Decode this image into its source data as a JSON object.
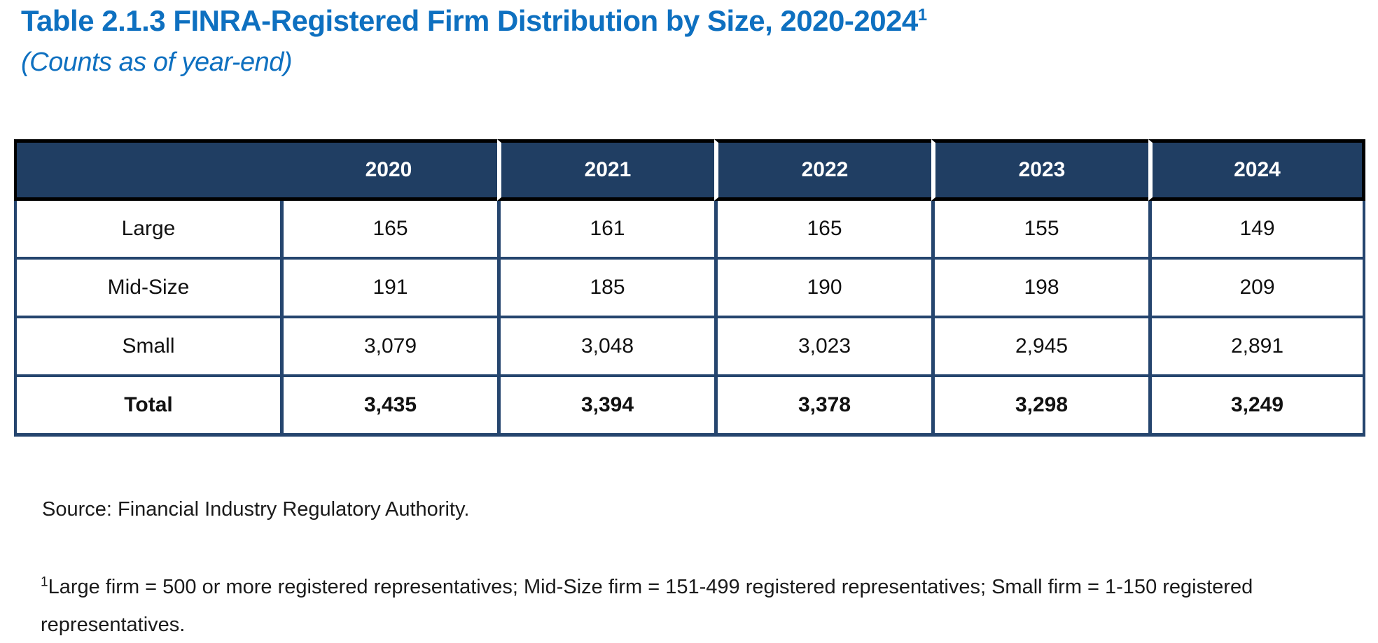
{
  "title": {
    "text": "Table 2.1.3 FINRA-Registered Firm Distribution by Size, 2020-2024",
    "superscript": "1"
  },
  "subtitle": "(Counts as of year-end)",
  "colors": {
    "accent_blue": "#0E70C0",
    "header_navy": "#203E63",
    "body_border_navy": "#25456E",
    "outer_border_black": "#000000"
  },
  "chart_data": {
    "type": "table",
    "title": "Table 2.1.3 FINRA-Registered Firm Distribution by Size, 2020-2024",
    "subtitle": "(Counts as of year-end)",
    "columns": [
      "2020",
      "2021",
      "2022",
      "2023",
      "2024"
    ],
    "rows": [
      {
        "label": "Large",
        "values": [
          "165",
          "161",
          "165",
          "155",
          "149"
        ]
      },
      {
        "label": "Mid-Size",
        "values": [
          "191",
          "185",
          "190",
          "198",
          "209"
        ]
      },
      {
        "label": "Small",
        "values": [
          "3,079",
          "3,048",
          "3,023",
          "2,945",
          "2,891"
        ]
      },
      {
        "label": "Total",
        "values": [
          "3,435",
          "3,394",
          "3,378",
          "3,298",
          "3,249"
        ]
      }
    ]
  },
  "table": {
    "corner_label": "",
    "columns": [
      "2020",
      "2021",
      "2022",
      "2023",
      "2024"
    ],
    "rows": [
      {
        "label": "Large",
        "values": [
          "165",
          "161",
          "165",
          "155",
          "149"
        ]
      },
      {
        "label": "Mid-Size",
        "values": [
          "191",
          "185",
          "190",
          "198",
          "209"
        ]
      },
      {
        "label": "Small",
        "values": [
          "3,079",
          "3,048",
          "3,023",
          "2,945",
          "2,891"
        ]
      },
      {
        "label": "Total",
        "values": [
          "3,435",
          "3,394",
          "3,378",
          "3,298",
          "3,249"
        ]
      }
    ]
  },
  "source_note": "Source: Financial Industry Regulatory Authority.",
  "footnote": {
    "marker": "1",
    "text": "Large firm = 500 or more registered representatives; Mid-Size firm = 151-499 registered representatives; Small firm = 1-150 registered representatives."
  }
}
